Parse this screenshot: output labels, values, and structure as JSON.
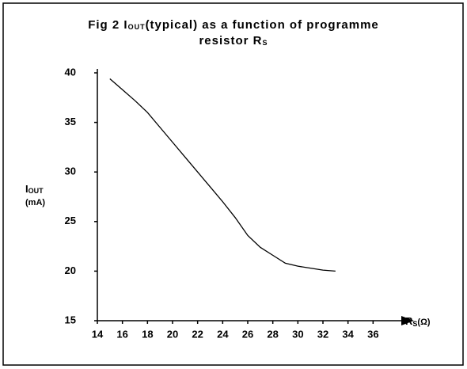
{
  "chart_data": {
    "type": "line",
    "title": [
      "Fig 2  I",
      "OUT",
      "(typical) as a function of programme",
      "resistor R",
      "S"
    ],
    "y_label": [
      "I",
      "OUT",
      "(mA)"
    ],
    "x_label": [
      "R",
      "S",
      "(Ω)"
    ],
    "x": [
      15,
      16,
      17,
      18,
      19,
      20,
      21,
      22,
      23,
      24,
      25,
      26,
      27,
      28,
      29,
      30,
      31,
      32,
      33
    ],
    "values": [
      39.4,
      38.3,
      37.2,
      36.0,
      34.5,
      33.0,
      31.5,
      30.0,
      28.5,
      27.0,
      25.4,
      23.6,
      22.4,
      21.6,
      20.8,
      20.5,
      20.3,
      20.1,
      20.0
    ],
    "color": "#000000",
    "xlim": [
      14,
      38
    ],
    "ylim": [
      15,
      40
    ],
    "xticks": [
      14,
      16,
      18,
      20,
      22,
      24,
      26,
      28,
      30,
      32,
      34,
      36
    ],
    "yticks": [
      15,
      20,
      25,
      30,
      35,
      40
    ]
  }
}
